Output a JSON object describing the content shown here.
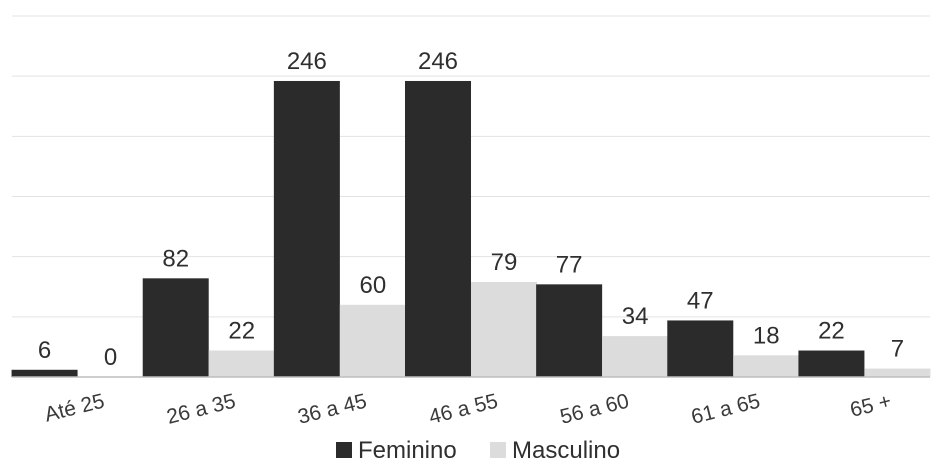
{
  "chart_data": {
    "type": "bar",
    "title": "",
    "xlabel": "",
    "ylabel": "",
    "categories": [
      "Até 25",
      "26 a 35",
      "36 a 45",
      "46 a 55",
      "56 a 60",
      "61 a 65",
      "65 +"
    ],
    "series": [
      {
        "name": "Feminino",
        "values": [
          6,
          82,
          246,
          246,
          77,
          47,
          22
        ],
        "color": "#2b2b2b"
      },
      {
        "name": "Masculino",
        "values": [
          0,
          22,
          60,
          79,
          34,
          18,
          7
        ],
        "color": "#dcdcdc"
      }
    ],
    "ylim": [
      0,
      300
    ],
    "grid": true,
    "legend_position": "bottom"
  }
}
